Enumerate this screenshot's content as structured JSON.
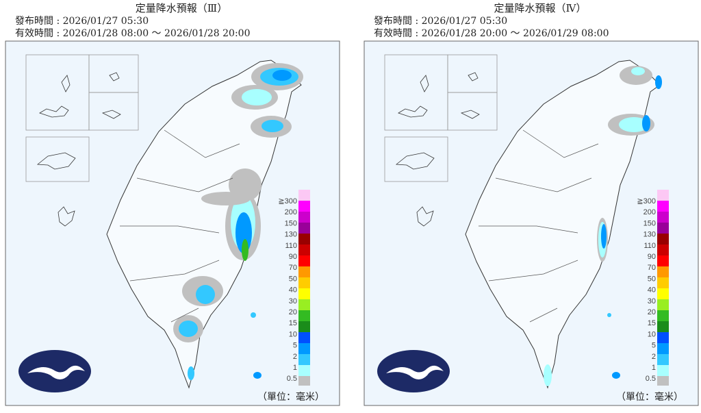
{
  "panels": [
    {
      "title": "定量降水預報（Ⅲ）",
      "issued": "發布時間 : 2026/01/27 05:30",
      "valid": "有效時間 : 2026/01/28 08:00 ～ 2026/01/28 20:00",
      "unit": "（單位：毫米）"
    },
    {
      "title": "定量降水預報（Ⅳ）",
      "issued": "發布時間 : 2026/01/27 05:30",
      "valid": "有效時間 : 2026/01/28 20:00 ～ 2026/01/29 08:00",
      "unit": "（單位：毫米）"
    }
  ],
  "legend": {
    "labels": [
      "≧300",
      "200",
      "150",
      "130",
      "110",
      "90",
      "70",
      "50",
      "40",
      "30",
      "20",
      "15",
      "10",
      "5",
      "2",
      "1",
      "0.5"
    ],
    "colors": [
      "#fcc8f4",
      "#ff00ff",
      "#cc00cc",
      "#990099",
      "#990000",
      "#cc0000",
      "#ff0000",
      "#ff9900",
      "#ffcc00",
      "#ffff00",
      "#99ee22",
      "#33bb22",
      "#1a8c1a",
      "#0050ff",
      "#0099ff",
      "#33c8ff",
      "#a8ffff"
    ],
    "last_color": "#c0c0c0"
  }
}
